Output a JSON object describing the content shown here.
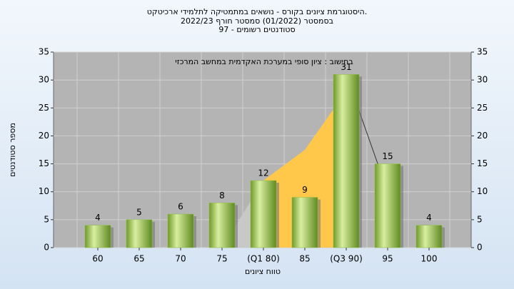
{
  "chart_data": {
    "type": "bar",
    "title": [
      "היסטוגרמת ציונים בקורס - נושאים במתמטיקה לתלמידי ארכיטקט.",
      "בסמסטר (01/2022) סמסטר חורף 2022/23",
      "סטודנטים רשומים - 97"
    ],
    "annotation": "בחישוב : ציון סופי במערכת האקדמית במחשב המרכזי",
    "x_label": "טווח ציונים",
    "y_label": "מספר סטודנטים",
    "categories": [
      "60",
      "65",
      "70",
      "75",
      "(Q1 80)",
      "85",
      "(Q3 90)",
      "95",
      "100"
    ],
    "values": [
      4,
      5,
      6,
      8,
      12,
      9,
      31,
      15,
      4
    ],
    "color": "#8fbf3f",
    "background_areas": [
      {
        "color": "#c8c8c8",
        "values": [
          null,
          null,
          null,
          0,
          12,
          null,
          null,
          null,
          null
        ]
      },
      {
        "color": "#ffc84a",
        "values": [
          null,
          null,
          null,
          null,
          12,
          17.5,
          28,
          null,
          null
        ]
      }
    ],
    "line": {
      "color": "#333333",
      "values": [
        null,
        null,
        null,
        null,
        null,
        null,
        31,
        10,
        null
      ]
    },
    "ylim": [
      0,
      35
    ],
    "yticks": [
      0,
      5,
      10,
      15,
      20,
      25,
      30,
      35
    ],
    "y2lim": [
      0,
      35
    ],
    "y2ticks": [
      0,
      5,
      10,
      15,
      20,
      25,
      30,
      35
    ],
    "grid": true
  }
}
